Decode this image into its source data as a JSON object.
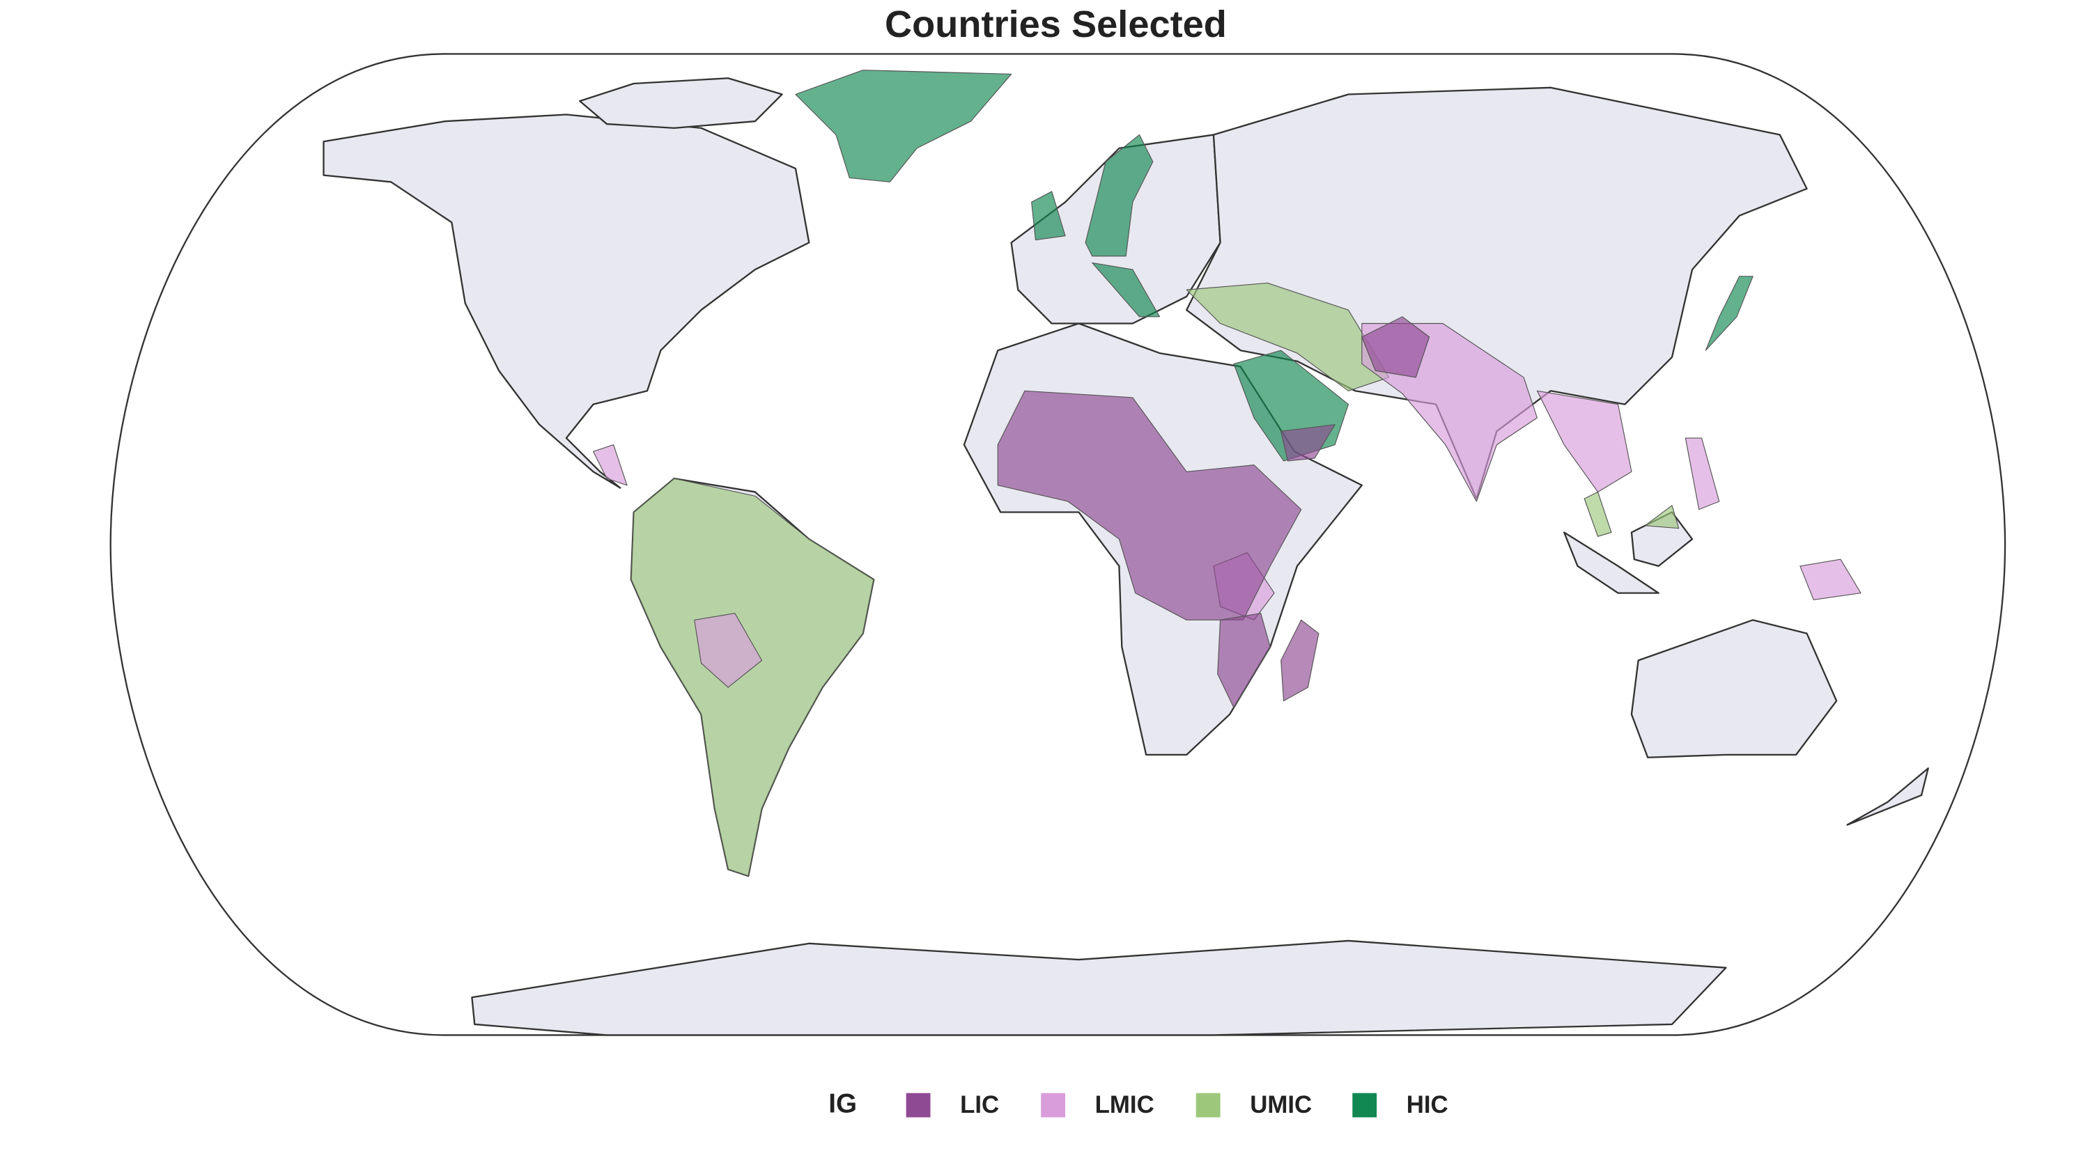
{
  "title": "Countries Selected",
  "legend": {
    "title": "IG",
    "items": [
      {
        "label": "LIC",
        "color": "#8f4a94"
      },
      {
        "label": "LMIC",
        "color": "#d99ddb"
      },
      {
        "label": "UMIC",
        "color": "#9dc87c"
      },
      {
        "label": "HIC",
        "color": "#118751"
      }
    ]
  }
}
